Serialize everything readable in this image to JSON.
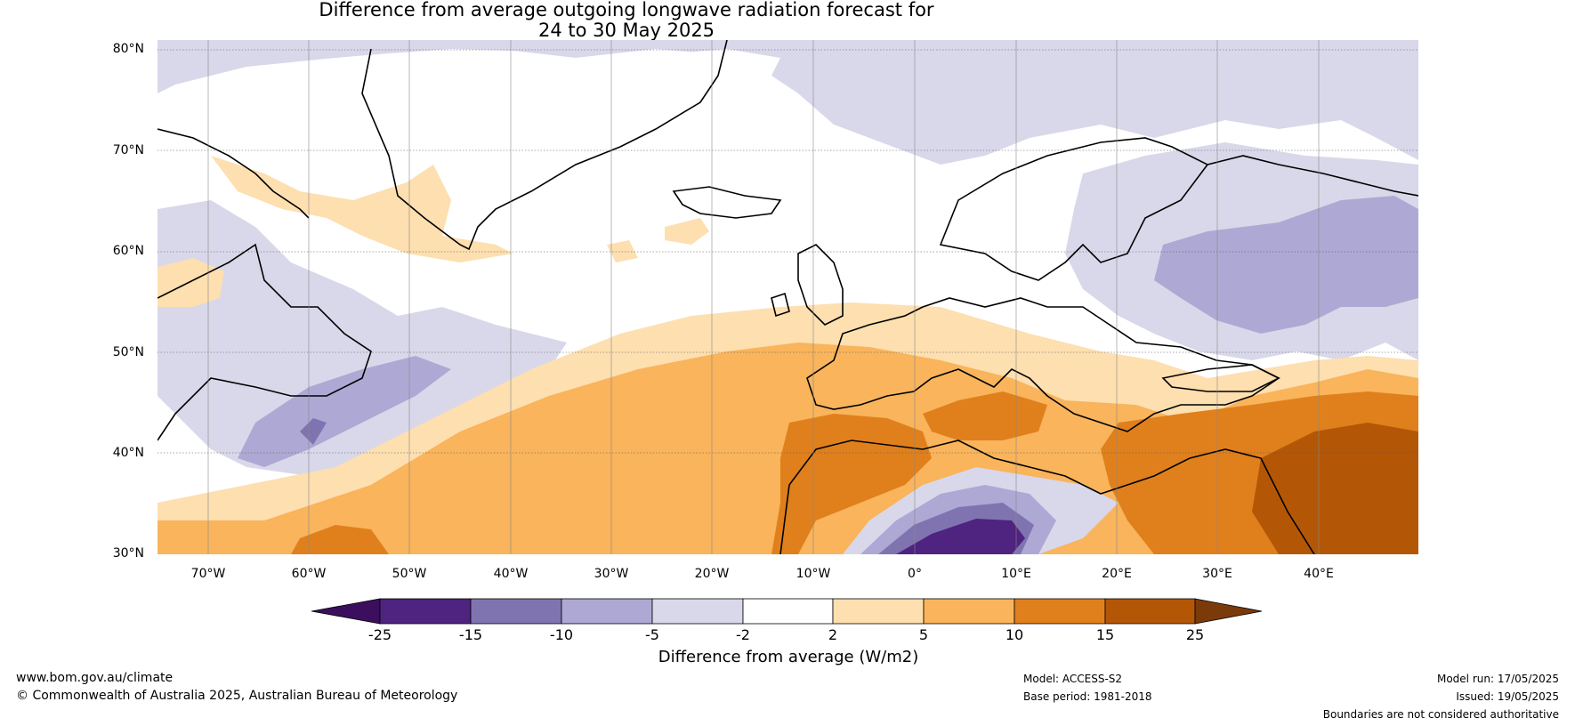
{
  "title": {
    "line1": "Difference from average outgoing longwave radiation forecast for",
    "line2": "24 to 30 May 2025"
  },
  "map": {
    "lat_labels": [
      "80°N",
      "70°N",
      "60°N",
      "50°N",
      "40°N",
      "30°N"
    ],
    "lon_labels": [
      "70°W",
      "60°W",
      "50°W",
      "40°W",
      "30°W",
      "20°W",
      "10°W",
      "0°",
      "10°E",
      "20°E",
      "30°E",
      "40°E"
    ]
  },
  "colorbar": {
    "title": "Difference from average (W/m2)",
    "ticks": [
      "-25",
      "-15",
      "-10",
      "-5",
      "-2",
      "2",
      "5",
      "10",
      "15",
      "25"
    ],
    "colors": [
      "#3b0f5e",
      "#4f2380",
      "#7f74b0",
      "#aea8d4",
      "#d8d8ea",
      "#ffffff",
      "#fddfb0",
      "#f9b45c",
      "#e0801c",
      "#b35707",
      "#7a3a0a"
    ]
  },
  "footer": {
    "website": "www.bom.gov.au/climate",
    "copyright": "© Commonwealth of Australia 2025, Australian Bureau of Meteorology",
    "model": "Model: ACCESS-S2",
    "base_period": "Base period: 1981-2018",
    "model_run": "Model run: 17/05/2025",
    "issued": "Issued: 19/05/2025",
    "disclaimer": "Boundaries are not considered authoritative"
  }
}
